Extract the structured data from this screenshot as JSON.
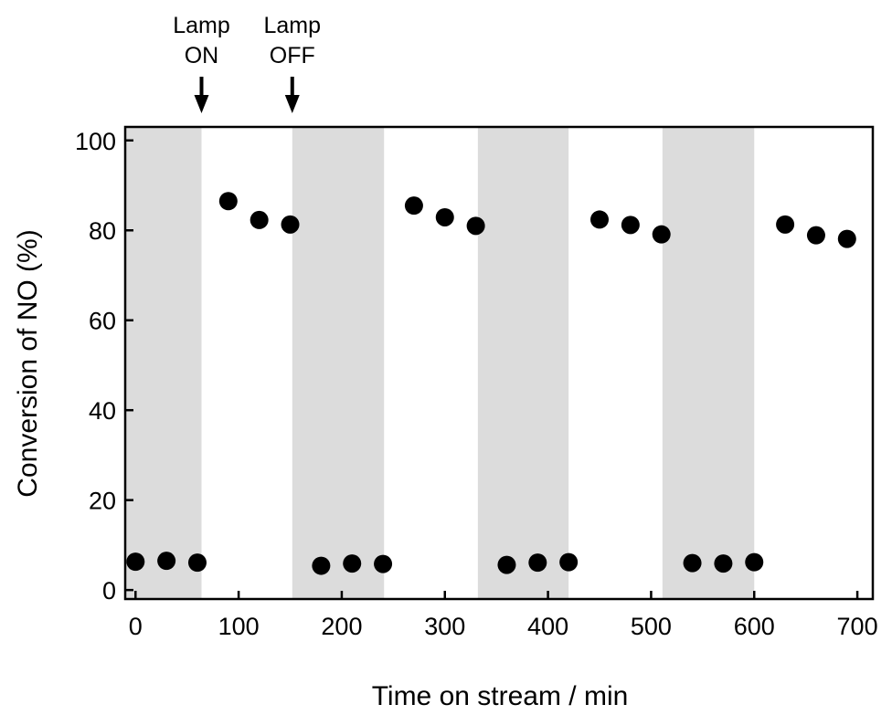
{
  "chart_data": {
    "type": "scatter",
    "xlabel": "Time on stream / min",
    "ylabel": "Conversion of NO (%)",
    "xlim": [
      -10,
      715
    ],
    "ylim": [
      -2,
      103
    ],
    "xticks": [
      0,
      100,
      200,
      300,
      400,
      500,
      600,
      700
    ],
    "yticks": [
      0,
      20,
      40,
      60,
      80,
      100
    ],
    "grid": false,
    "shaded_bands": [
      [
        -10,
        64
      ],
      [
        152,
        241
      ],
      [
        332,
        420
      ],
      [
        511,
        600
      ]
    ],
    "points": {
      "x": [
        0,
        30,
        60,
        90,
        120,
        150,
        180,
        210,
        240,
        270,
        300,
        330,
        360,
        390,
        420,
        450,
        480,
        510,
        540,
        570,
        600,
        630,
        660,
        690
      ],
      "y": [
        6.3,
        6.5,
        6.1,
        86.5,
        82.3,
        81.3,
        5.4,
        5.9,
        5.8,
        85.5,
        82.9,
        81.0,
        5.6,
        6.1,
        6.2,
        82.4,
        81.2,
        79.1,
        6.0,
        5.9,
        6.2,
        81.3,
        78.9,
        78.1
      ]
    },
    "annotations": [
      {
        "lines": [
          "Lamp",
          "ON"
        ],
        "x": 64
      },
      {
        "lines": [
          "Lamp",
          "OFF"
        ],
        "x": 152
      }
    ]
  }
}
